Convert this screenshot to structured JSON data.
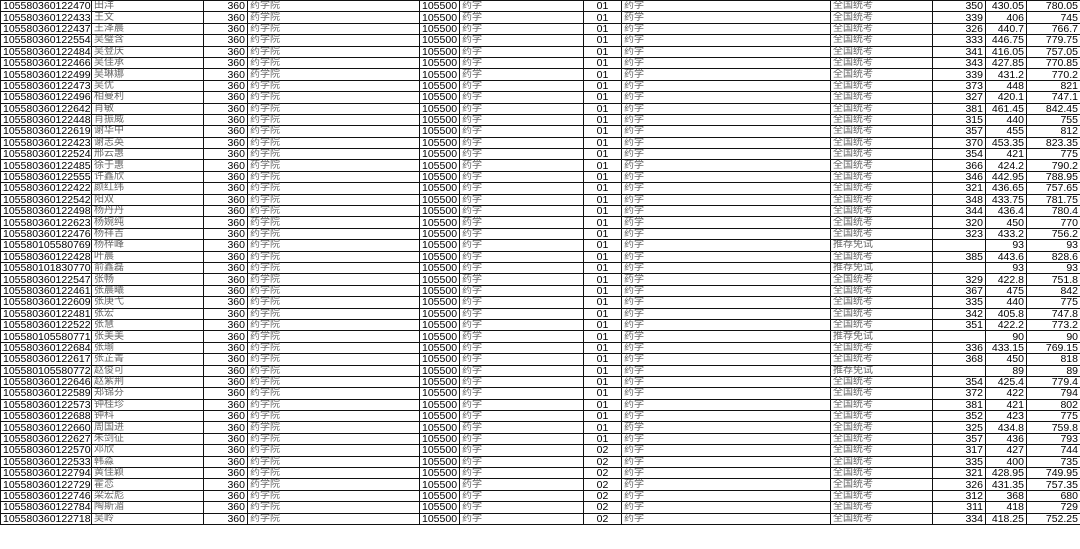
{
  "table": {
    "columns": [
      "id",
      "name",
      "school_code",
      "school",
      "major_code",
      "major",
      "direction_code",
      "direction",
      "exam_type",
      "score_initial",
      "score_retest",
      "score_total",
      "study_mode"
    ],
    "rows": [
      [
        "105580360122470",
        "田洋",
        "360",
        "药学院",
        "105500",
        "药学",
        "01",
        "药学",
        "全国统考",
        "350",
        "430.05",
        "780.05",
        "全日制"
      ],
      [
        "105580360122433",
        "王文",
        "360",
        "药学院",
        "105500",
        "药学",
        "01",
        "药学",
        "全国统考",
        "339",
        "406",
        "745",
        "全日制"
      ],
      [
        "105580360122437",
        "王泽晨",
        "360",
        "药学院",
        "105500",
        "药学",
        "01",
        "药学",
        "全国统考",
        "326",
        "440.7",
        "766.7",
        "全日制"
      ],
      [
        "105580360122554",
        "吴璧含",
        "360",
        "药学院",
        "105500",
        "药学",
        "01",
        "药学",
        "全国统考",
        "333",
        "446.75",
        "779.75",
        "全日制"
      ],
      [
        "105580360122484",
        "吴登庆",
        "360",
        "药学院",
        "105500",
        "药学",
        "01",
        "药学",
        "全国统考",
        "341",
        "416.05",
        "757.05",
        "全日制"
      ],
      [
        "105580360122466",
        "吴佳承",
        "360",
        "药学院",
        "105500",
        "药学",
        "01",
        "药学",
        "全国统考",
        "343",
        "427.85",
        "770.85",
        "全日制"
      ],
      [
        "105580360122499",
        "吴琳娜",
        "360",
        "药学院",
        "105500",
        "药学",
        "01",
        "药学",
        "全国统考",
        "339",
        "431.2",
        "770.2",
        "全日制"
      ],
      [
        "105580360122473",
        "吴优",
        "360",
        "药学院",
        "105500",
        "药学",
        "01",
        "药学",
        "全国统考",
        "373",
        "448",
        "821",
        "全日制"
      ],
      [
        "105580360122496",
        "相曼利",
        "360",
        "药学院",
        "105500",
        "药学",
        "01",
        "药学",
        "全国统考",
        "327",
        "420.1",
        "747.1",
        "全日制"
      ],
      [
        "105580360122642",
        "肖敏",
        "360",
        "药学院",
        "105500",
        "药学",
        "01",
        "药学",
        "全国统考",
        "381",
        "461.45",
        "842.45",
        "全日制"
      ],
      [
        "105580360122448",
        "肖振威",
        "360",
        "药学院",
        "105500",
        "药学",
        "01",
        "药学",
        "全国统考",
        "315",
        "440",
        "755",
        "全日制"
      ],
      [
        "105580360122619",
        "谢华中",
        "360",
        "药学院",
        "105500",
        "药学",
        "01",
        "药学",
        "全国统考",
        "357",
        "455",
        "812",
        "全日制"
      ],
      [
        "105580360122423",
        "谢志英",
        "360",
        "药学院",
        "105500",
        "药学",
        "01",
        "药学",
        "全国统考",
        "370",
        "453.35",
        "823.35",
        "全日制"
      ],
      [
        "105580360122524",
        "邢云惠",
        "360",
        "药学院",
        "105500",
        "药学",
        "01",
        "药学",
        "全国统考",
        "354",
        "421",
        "775",
        "全日制"
      ],
      [
        "105580360122485",
        "徐于惠",
        "360",
        "药学院",
        "105500",
        "药学",
        "01",
        "药学",
        "全国统考",
        "366",
        "424.2",
        "790.2",
        "全日制"
      ],
      [
        "105580360122555",
        "许鑫欣",
        "360",
        "药学院",
        "105500",
        "药学",
        "01",
        "药学",
        "全国统考",
        "346",
        "442.95",
        "788.95",
        "全日制"
      ],
      [
        "105580360122422",
        "颜红纬",
        "360",
        "药学院",
        "105500",
        "药学",
        "01",
        "药学",
        "全国统考",
        "321",
        "436.65",
        "757.65",
        "全日制"
      ],
      [
        "105580360122542",
        "阳双",
        "360",
        "药学院",
        "105500",
        "药学",
        "01",
        "药学",
        "全国统考",
        "348",
        "433.75",
        "781.75",
        "全日制"
      ],
      [
        "105580360122498",
        "杨丹丹",
        "360",
        "药学院",
        "105500",
        "药学",
        "01",
        "药学",
        "全国统考",
        "344",
        "436.4",
        "780.4",
        "全日制"
      ],
      [
        "105580360122623",
        "杨婉纯",
        "360",
        "药学院",
        "105500",
        "药学",
        "01",
        "药学",
        "全国统考",
        "320",
        "450",
        "770",
        "全日制"
      ],
      [
        "105580360122476",
        "杨祥吉",
        "360",
        "药学院",
        "105500",
        "药学",
        "01",
        "药学",
        "全国统考",
        "323",
        "433.2",
        "756.2",
        "全日制"
      ],
      [
        "105580105580769",
        "杨梓峰",
        "360",
        "药学院",
        "105500",
        "药学",
        "01",
        "药学",
        "推荐免试",
        "",
        "93",
        "93",
        "全日制"
      ],
      [
        "105580360122428",
        "叶晨",
        "360",
        "药学院",
        "105500",
        "药学",
        "01",
        "药学",
        "全国统考",
        "385",
        "443.6",
        "828.6",
        "全日制"
      ],
      [
        "105580101830770",
        "俞鑫磊",
        "360",
        "药学院",
        "105500",
        "药学",
        "01",
        "药学",
        "推荐免试",
        "",
        "93",
        "93",
        "全日制"
      ],
      [
        "105580360122547",
        "张畅",
        "360",
        "药学院",
        "105500",
        "药学",
        "01",
        "药学",
        "全国统考",
        "329",
        "422.8",
        "751.8",
        "全日制"
      ],
      [
        "105580360122461",
        "张晨曦",
        "360",
        "药学院",
        "105500",
        "药学",
        "01",
        "药学",
        "全国统考",
        "367",
        "475",
        "842",
        "全日制"
      ],
      [
        "105580360122609",
        "张庚弋",
        "360",
        "药学院",
        "105500",
        "药学",
        "01",
        "药学",
        "全国统考",
        "335",
        "440",
        "775",
        "全日制"
      ],
      [
        "105580360122481",
        "张宏",
        "360",
        "药学院",
        "105500",
        "药学",
        "01",
        "药学",
        "全国统考",
        "342",
        "405.8",
        "747.8",
        "全日制"
      ],
      [
        "105580360122522",
        "张慧",
        "360",
        "药学院",
        "105500",
        "药学",
        "01",
        "药学",
        "全国统考",
        "351",
        "422.2",
        "773.2",
        "全日制"
      ],
      [
        "105580105580771",
        "张美美",
        "360",
        "药学院",
        "105500",
        "药学",
        "01",
        "药学",
        "推荐免试",
        "",
        "90",
        "90",
        "全日制"
      ],
      [
        "105580360122684",
        "张瑜",
        "360",
        "药学院",
        "105500",
        "药学",
        "01",
        "药学",
        "全国统考",
        "336",
        "433.15",
        "769.15",
        "全日制"
      ],
      [
        "105580360122617",
        "张芷菁",
        "360",
        "药学院",
        "105500",
        "药学",
        "01",
        "药学",
        "全国统考",
        "368",
        "450",
        "818",
        "全日制"
      ],
      [
        "105580105580772",
        "赵俊可",
        "360",
        "药学院",
        "105500",
        "药学",
        "01",
        "药学",
        "推荐免试",
        "",
        "89",
        "89",
        "全日制"
      ],
      [
        "105580360122646",
        "赵紫荆",
        "360",
        "药学院",
        "105500",
        "药学",
        "01",
        "药学",
        "全国统考",
        "354",
        "425.4",
        "779.4",
        "全日制"
      ],
      [
        "105580360122589",
        "郑锦芬",
        "360",
        "药学院",
        "105500",
        "药学",
        "01",
        "药学",
        "全国统考",
        "372",
        "422",
        "794",
        "全日制"
      ],
      [
        "105580360122573",
        "钟桂珍",
        "360",
        "药学院",
        "105500",
        "药学",
        "01",
        "药学",
        "全国统考",
        "381",
        "421",
        "802",
        "全日制"
      ],
      [
        "105580360122688",
        "钟科",
        "360",
        "药学院",
        "105500",
        "药学",
        "01",
        "药学",
        "全国统考",
        "352",
        "423",
        "775",
        "全日制"
      ],
      [
        "105580360122660",
        "周国进",
        "360",
        "药学院",
        "105500",
        "药学",
        "01",
        "药学",
        "全国统考",
        "325",
        "434.8",
        "759.8",
        "全日制"
      ],
      [
        "105580360122627",
        "朱剑征",
        "360",
        "药学院",
        "105500",
        "药学",
        "01",
        "药学",
        "全国统考",
        "357",
        "436",
        "793",
        "全日制"
      ],
      [
        "105580360122570",
        "邓欣",
        "360",
        "药学院",
        "105500",
        "药学",
        "02",
        "药学",
        "全国统考",
        "317",
        "427",
        "744",
        "非全日制"
      ],
      [
        "105580360122533",
        "韩淼",
        "360",
        "药学院",
        "105500",
        "药学",
        "02",
        "药学",
        "全国统考",
        "335",
        "400",
        "735",
        "非全日制"
      ],
      [
        "105580360122794",
        "黄佳颖",
        "360",
        "药学院",
        "105500",
        "药学",
        "02",
        "药学",
        "全国统考",
        "321",
        "428.95",
        "749.95",
        "非全日制"
      ],
      [
        "105580360122729",
        "霍恋",
        "360",
        "药学院",
        "105500",
        "药学",
        "02",
        "药学",
        "全国统考",
        "326",
        "431.35",
        "757.35",
        "非全日制"
      ],
      [
        "105580360122746",
        "梁宏彪",
        "360",
        "药学院",
        "105500",
        "药学",
        "02",
        "药学",
        "全国统考",
        "312",
        "368",
        "680",
        "非全日制"
      ],
      [
        "105580360122784",
        "陶斯湄",
        "360",
        "药学院",
        "105500",
        "药学",
        "02",
        "药学",
        "全国统考",
        "311",
        "418",
        "729",
        "非全日制"
      ],
      [
        "105580360122718",
        "吴岭",
        "360",
        "药学院",
        "105500",
        "药学",
        "02",
        "药学",
        "全国统考",
        "334",
        "418.25",
        "752.25",
        "非全日制"
      ]
    ]
  }
}
